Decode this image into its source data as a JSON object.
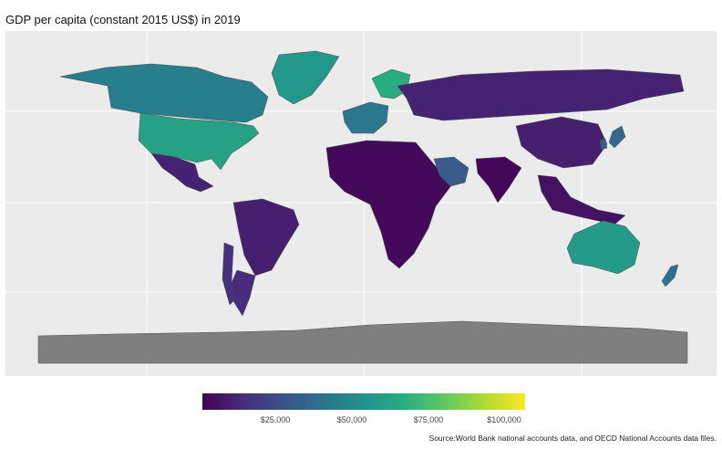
{
  "title": "GDP per capita (constant 2015 US$) in 2019",
  "legend": {
    "ticks": [
      "$25,000",
      "$50,000",
      "$75,000",
      "$100,000"
    ],
    "colormap": "viridis",
    "stops": [
      "#440154",
      "#472d7b",
      "#3b528b",
      "#2c728e",
      "#21918c",
      "#28ae80",
      "#5ec962",
      "#addc30",
      "#fde725"
    ]
  },
  "source": "Source:World Bank national accounts data, and OECD National Accounts data files.",
  "colors": {
    "panel_bg": "#ebebeb",
    "grid": "#ffffff",
    "no_data": "#7f7f7f",
    "border": "#4d4d4d"
  },
  "map_data": {
    "regions": [
      {
        "name": "United States",
        "value": 60000
      },
      {
        "name": "Canada",
        "value": 45000
      },
      {
        "name": "Greenland",
        "value": 55000
      },
      {
        "name": "Mexico",
        "value": 10000
      },
      {
        "name": "Brazil",
        "value": 9000
      },
      {
        "name": "Argentina",
        "value": 13000
      },
      {
        "name": "Chile",
        "value": 14000
      },
      {
        "name": "Europe (west)",
        "value": 42000
      },
      {
        "name": "Scandinavia",
        "value": 65000
      },
      {
        "name": "Russia",
        "value": 10000
      },
      {
        "name": "Africa",
        "value": 2500
      },
      {
        "name": "Middle East (Gulf)",
        "value": 30000
      },
      {
        "name": "India",
        "value": 2000
      },
      {
        "name": "China",
        "value": 9000
      },
      {
        "name": "Japan",
        "value": 36000
      },
      {
        "name": "South Korea",
        "value": 30000
      },
      {
        "name": "Southeast Asia",
        "value": 5000
      },
      {
        "name": "Australia",
        "value": 57000
      },
      {
        "name": "New Zealand",
        "value": 40000
      },
      {
        "name": "Antarctica",
        "value": null
      }
    ]
  }
}
